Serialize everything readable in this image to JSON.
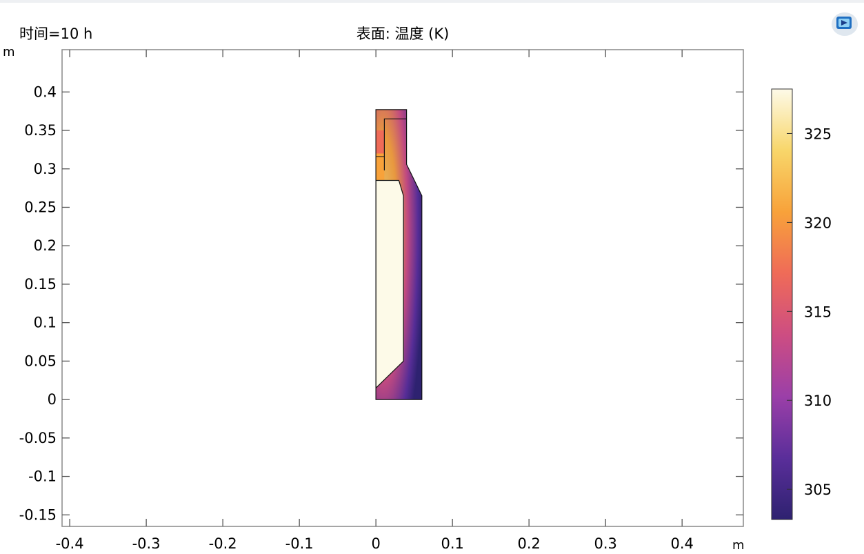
{
  "header": {
    "time_label": "时间=10 h",
    "plot_title": "表面: 温度 (K)"
  },
  "logo_icon": "comsol-logo-icon",
  "chart_data": {
    "type": "heatmap",
    "title": "表面: 温度 (K)",
    "time_label": "时间=10 h",
    "xlabel": "m",
    "ylabel": "m",
    "xlim": [
      -0.41,
      0.48
    ],
    "ylim": [
      -0.165,
      0.455
    ],
    "x_ticks": [
      -0.4,
      -0.3,
      -0.2,
      -0.1,
      0,
      0.1,
      0.2,
      0.3,
      0.4
    ],
    "x_tick_labels": [
      "-0.4",
      "-0.3",
      "-0.2",
      "-0.1",
      "0",
      "0.1",
      "0.2",
      "0.3",
      "0.4"
    ],
    "y_ticks": [
      -0.15,
      -0.1,
      -0.05,
      0,
      0.05,
      0.1,
      0.15,
      0.2,
      0.25,
      0.3,
      0.35,
      0.4
    ],
    "y_tick_labels": [
      "-0.15",
      "-0.1",
      "-0.05",
      "0",
      "0.05",
      "0.1",
      "0.15",
      "0.2",
      "0.25",
      "0.3",
      "0.35",
      "0.4"
    ],
    "colorbar": {
      "min": 303.3,
      "max": 327.5,
      "ticks": [
        305,
        310,
        315,
        320,
        325
      ],
      "tick_labels": [
        "305",
        "310",
        "315",
        "320",
        "325"
      ],
      "colormap": [
        "#2e2270",
        "#5a2e9a",
        "#9b3fa8",
        "#cd4d82",
        "#ef6b58",
        "#f8a23a",
        "#f8d66a",
        "#fdfae8"
      ]
    },
    "geometry": {
      "outer_outline": [
        [
          0,
          0
        ],
        [
          0.06,
          0
        ],
        [
          0.06,
          0.265
        ],
        [
          0.04,
          0.306
        ],
        [
          0.04,
          0.377
        ],
        [
          0,
          0.377
        ]
      ],
      "liquid_outline": [
        [
          0,
          0.015
        ],
        [
          0.036,
          0.05
        ],
        [
          0.036,
          0.265
        ],
        [
          0.03,
          0.285
        ],
        [
          0,
          0.285
        ]
      ],
      "neck_outline": [
        [
          0.011,
          0.298
        ],
        [
          0.011,
          0.365
        ],
        [
          0.04,
          0.365
        ]
      ],
      "liquid_temperature": 327.3,
      "wall_temperature": 304
    }
  }
}
